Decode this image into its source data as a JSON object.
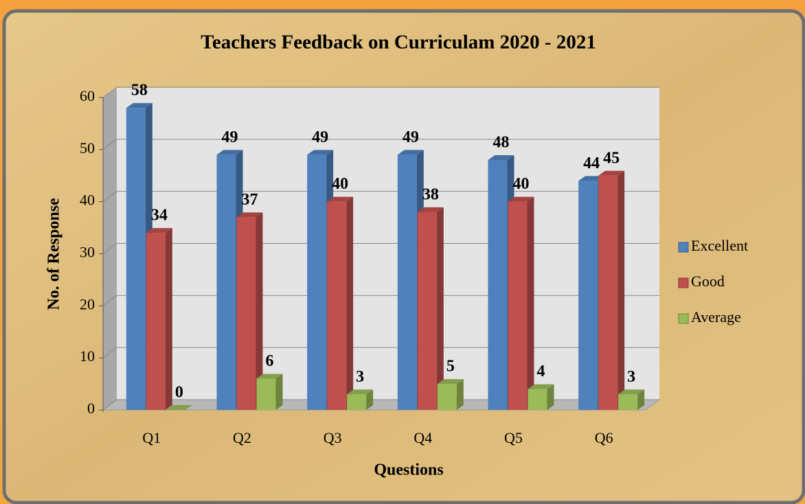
{
  "chart_data": {
    "type": "bar",
    "title": "Teachers Feedback on Curriculam 2020 - 2021",
    "xlabel": "Questions",
    "ylabel": "No. of Response",
    "categories": [
      "Q1",
      "Q2",
      "Q3",
      "Q4",
      "Q5",
      "Q6"
    ],
    "series": [
      {
        "name": "Excellent",
        "color": "#4f81bd",
        "values": [
          58,
          49,
          49,
          49,
          48,
          44
        ]
      },
      {
        "name": "Good",
        "color": "#c0504d",
        "values": [
          34,
          37,
          40,
          38,
          40,
          45
        ]
      },
      {
        "name": "Average",
        "color": "#9bbb59",
        "values": [
          0,
          6,
          3,
          5,
          4,
          3
        ]
      }
    ],
    "ylim": [
      0,
      60
    ],
    "yticks": [
      0,
      10,
      20,
      30,
      40,
      50,
      60
    ],
    "grid": true,
    "legend": "right"
  }
}
